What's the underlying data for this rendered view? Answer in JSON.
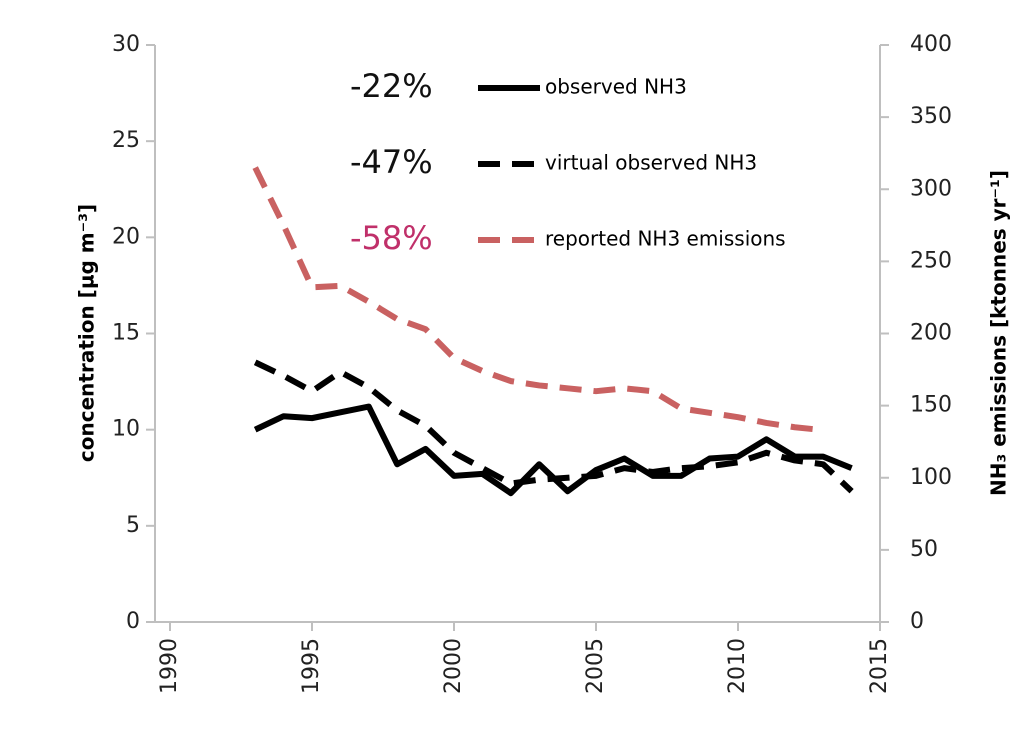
{
  "chart_data": {
    "type": "line",
    "y_label": "concentration [µg m⁻³]",
    "y2_label": "NH₃ emissions [ktonnes yr⁻¹]",
    "xlim": [
      1990,
      2015
    ],
    "xticks": [
      1990,
      1995,
      2000,
      2005,
      2010,
      2015
    ],
    "ylim": [
      0,
      30
    ],
    "yticks": [
      0,
      5,
      10,
      15,
      20,
      25,
      30
    ],
    "y2lim": [
      0,
      400
    ],
    "y2ticks": [
      0,
      50,
      100,
      150,
      200,
      250,
      300,
      350,
      400
    ],
    "grid": false,
    "annotations": [
      {
        "text": "-22%",
        "color": "#111111"
      },
      {
        "text": "-47%",
        "color": "#111111"
      },
      {
        "text": "-58%",
        "color": "#c0306a"
      }
    ],
    "series": [
      {
        "name": "observed NH3",
        "color": "#000000",
        "dash": "solid",
        "x": [
          1993,
          1994,
          1995,
          1996,
          1997,
          1998,
          1999,
          2000,
          2001,
          2002,
          2003,
          2004,
          2005,
          2006,
          2007,
          2008,
          2009,
          2010,
          2011,
          2012,
          2013,
          2014
        ],
        "values": [
          10.0,
          10.7,
          10.6,
          10.9,
          11.2,
          8.2,
          9.0,
          7.6,
          7.7,
          6.7,
          8.2,
          6.8,
          7.9,
          8.5,
          7.6,
          7.6,
          8.5,
          8.6,
          9.5,
          8.6,
          8.6,
          8.0
        ]
      },
      {
        "name": "virtual observed NH3",
        "color": "#000000",
        "dash": "dashed",
        "x": [
          1993,
          1994,
          1995,
          1996,
          1997,
          1998,
          1999,
          2000,
          2001,
          2002,
          2003,
          2004,
          2005,
          2006,
          2007,
          2008,
          2009,
          2010,
          2011,
          2012,
          2013,
          2014
        ],
        "values": [
          13.5,
          12.8,
          12.0,
          13.0,
          12.2,
          11.0,
          10.2,
          8.8,
          8.0,
          7.2,
          7.4,
          7.5,
          7.6,
          8.0,
          7.8,
          8.0,
          8.1,
          8.3,
          8.8,
          8.4,
          8.2,
          6.8
        ]
      },
      {
        "name": "reported NH3 emissions",
        "color": "#c96161",
        "dash": "dashed",
        "axis": "y2",
        "x": [
          1993,
          1994,
          1995,
          1996,
          1997,
          1998,
          1999,
          2000,
          2001,
          2002,
          2003,
          2004,
          2005,
          2006,
          2007,
          2008,
          2009,
          2010,
          2011,
          2012,
          2013
        ],
        "values": [
          315,
          275,
          232,
          233,
          222,
          210,
          203,
          183,
          174,
          167,
          164,
          162,
          160,
          162,
          160,
          148,
          145,
          142,
          138,
          135,
          133
        ]
      }
    ]
  }
}
